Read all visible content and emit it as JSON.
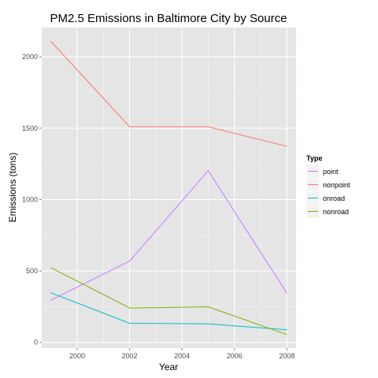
{
  "chart_data": {
    "type": "line",
    "title": "PM2.5 Emissions in Baltimore City by Source",
    "xlabel": "Year",
    "ylabel": "Emissions (tons)",
    "x": [
      1999,
      2002,
      2005,
      2008
    ],
    "xlim": [
      1998.65,
      2008.35
    ],
    "ylim": [
      -40,
      2205
    ],
    "xticks": [
      2000,
      2002,
      2004,
      2006,
      2008
    ],
    "yticks": [
      0,
      500,
      1000,
      1500,
      2000
    ],
    "grid": true,
    "legend": {
      "title": "Type",
      "position": "right"
    },
    "series": [
      {
        "name": "point",
        "color": "#C77CFF",
        "values": [
          296,
          569,
          1203,
          345
        ]
      },
      {
        "name": "nonpoint",
        "color": "#F8766D",
        "values": [
          2108,
          1510,
          1510,
          1373
        ]
      },
      {
        "name": "onroad",
        "color": "#00BFC4",
        "values": [
          347,
          134,
          130,
          88
        ]
      },
      {
        "name": "nonroad",
        "color": "#7CAE00",
        "values": [
          523,
          241,
          249,
          55
        ]
      }
    ]
  }
}
